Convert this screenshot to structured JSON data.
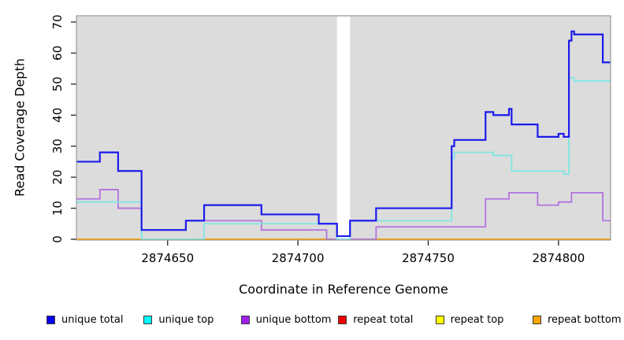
{
  "figure": {
    "plot_bg": "#dcdcdc",
    "border_color": "#9b9b9b",
    "gap_region": {
      "x_start": 2874715,
      "x_end": 2874720
    }
  },
  "axes": {
    "x": {
      "label": "Coordinate in Reference Genome",
      "ticks": [
        2874650,
        2874700,
        2874750,
        2874800
      ],
      "range": [
        2874615,
        2874820
      ]
    },
    "y": {
      "label": "Read Coverage Depth",
      "ticks": [
        0,
        10,
        20,
        30,
        40,
        50,
        60,
        70
      ],
      "range": [
        0,
        72
      ]
    }
  },
  "legend": [
    {
      "label": "unique total",
      "color": "#0000ee"
    },
    {
      "label": "unique top",
      "color": "#00ffff"
    },
    {
      "label": "unique bottom",
      "color": "#a020f0"
    },
    {
      "label": "repeat total",
      "color": "#ee0000"
    },
    {
      "label": "repeat top",
      "color": "#ffff00"
    },
    {
      "label": "repeat bottom",
      "color": "#ffa500"
    }
  ],
  "chart_data": {
    "type": "line",
    "subtype": "step",
    "title": "",
    "xlabel": "Coordinate in Reference Genome",
    "ylabel": "Read Coverage Depth",
    "xlim": [
      2874615,
      2874820
    ],
    "ylim": [
      0,
      72
    ],
    "grid": false,
    "legend_position": "bottom",
    "series": [
      {
        "name": "repeat total",
        "color": "#dd0000",
        "width": 2,
        "breaks": [
          2874615,
          2874820
        ],
        "values": [
          0
        ]
      },
      {
        "name": "repeat top",
        "color": "#ffff00",
        "width": 2,
        "breaks": [
          2874615,
          2874820
        ],
        "values": [
          0
        ]
      },
      {
        "name": "repeat bottom",
        "color": "#ffa500",
        "width": 2,
        "breaks": [
          2874615,
          2874820
        ],
        "values": [
          0
        ]
      },
      {
        "name": "unique bottom",
        "color": "#b273de",
        "width": 1.8,
        "breaks": [
          2874615,
          2874624,
          2874631,
          2874640,
          2874657,
          2874686,
          2874711,
          2874730,
          2874772,
          2874781,
          2874792,
          2874800,
          2874805,
          2874817,
          2874820
        ],
        "values": [
          13,
          16,
          10,
          3,
          6,
          3,
          0,
          4,
          13,
          15,
          11,
          12,
          15,
          6
        ]
      },
      {
        "name": "unique top",
        "color": "#7fe6e2",
        "width": 1.8,
        "breaks": [
          2874615,
          2874640,
          2874664,
          2874715,
          2874720,
          2874759,
          2874760,
          2874775,
          2874782,
          2874802,
          2874804,
          2874806,
          2874820
        ],
        "values": [
          12,
          0,
          5,
          0,
          6,
          26,
          28,
          27,
          22,
          21,
          52,
          51
        ]
      },
      {
        "name": "unique total",
        "color": "#1b1beb",
        "width": 2.2,
        "breaks": [
          2874615,
          2874624,
          2874631,
          2874640,
          2874657,
          2874664,
          2874686,
          2874708,
          2874715,
          2874720,
          2874730,
          2874759,
          2874760,
          2874772,
          2874775,
          2874781,
          2874782,
          2874792,
          2874800,
          2874802,
          2874804,
          2874805,
          2874806,
          2874817,
          2874820
        ],
        "values": [
          25,
          28,
          22,
          3,
          6,
          11,
          8,
          5,
          1,
          6,
          10,
          30,
          32,
          41,
          40,
          42,
          37,
          33,
          34,
          33,
          64,
          67,
          66,
          57
        ]
      }
    ]
  }
}
